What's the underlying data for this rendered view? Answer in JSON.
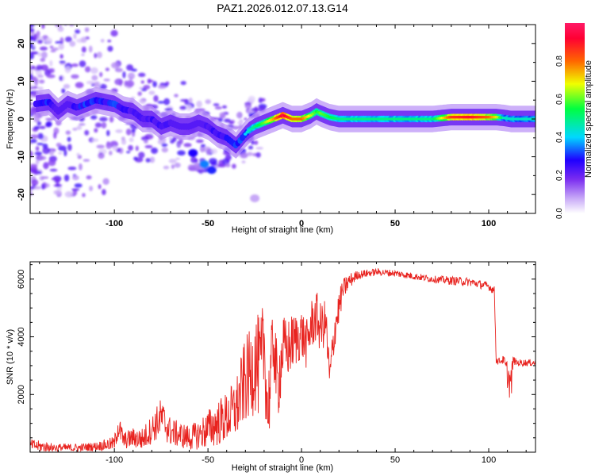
{
  "page_title": "PAZ1.2026.012.07.13.G14",
  "chart_data": [
    {
      "type": "heatmap",
      "title": "PAZ1.2026.012.07.13.G14",
      "xlabel": "Height of straight line (km)",
      "ylabel": "Frequency (Hz)",
      "xlim": [
        -145,
        125
      ],
      "ylim": [
        -25,
        25
      ],
      "xticks": [
        -100,
        -50,
        0,
        50,
        100
      ],
      "yticks": [
        -20,
        -10,
        0,
        10,
        20
      ],
      "ridge": {
        "x": [
          -142,
          -135,
          -130,
          -125,
          -120,
          -115,
          -110,
          -105,
          -100,
          -95,
          -90,
          -85,
          -80,
          -75,
          -70,
          -65,
          -60,
          -55,
          -50,
          -45,
          -40,
          -35,
          -30,
          -28,
          -25,
          -20,
          -15,
          -10,
          -5,
          0,
          5,
          8,
          10,
          15,
          20,
          30,
          50,
          70,
          80,
          90,
          100,
          104,
          108,
          112,
          116,
          125
        ],
        "freq": [
          4,
          4.5,
          2,
          4,
          3,
          4,
          5,
          4.5,
          4,
          2.5,
          2,
          0,
          0,
          -2,
          -1,
          -2,
          -2,
          -1,
          -2,
          -4,
          -5,
          -7,
          -4,
          -3,
          -2,
          -1,
          0,
          1,
          0,
          0,
          1,
          2,
          1.5,
          0.5,
          0,
          0,
          0,
          0,
          0.5,
          0.5,
          0.5,
          0.5,
          0.3,
          0,
          0,
          0
        ],
        "amplitude": [
          0.3,
          0.35,
          0.2,
          0.25,
          0.3,
          0.35,
          0.35,
          0.3,
          0.35,
          0.3,
          0.25,
          0.25,
          0.3,
          0.25,
          0.25,
          0.2,
          0.2,
          0.2,
          0.25,
          0.3,
          0.3,
          0.35,
          0.35,
          0.4,
          0.45,
          0.55,
          0.7,
          0.9,
          0.75,
          0.75,
          0.6,
          0.5,
          0.55,
          0.5,
          0.45,
          0.45,
          0.45,
          0.45,
          0.8,
          0.85,
          0.75,
          0.65,
          0.4,
          0.4,
          0.4,
          0.4
        ]
      },
      "colorbar": {
        "label": "Normalized spectral amplitude",
        "ticks": [
          "0.0",
          "0.2",
          "0.4",
          "0.6",
          "0.8"
        ],
        "range": [
          0,
          1
        ],
        "colors": [
          "#ffffff",
          "#c7a8f7",
          "#7a2cf0",
          "#1f00ff",
          "#00d8ff",
          "#00ff40",
          "#f0ff00",
          "#ff6600",
          "#ff0033",
          "#ff1a66"
        ]
      }
    },
    {
      "type": "line",
      "xlabel": "Height of straight line (km)",
      "ylabel": "SNR (10 * v/v)",
      "xlim": [
        -145,
        125
      ],
      "ylim": [
        0,
        6600
      ],
      "xticks": [
        -100,
        -50,
        0,
        50,
        100
      ],
      "yticks": [
        2000,
        4000,
        6000
      ],
      "series": [
        {
          "name": "SNR",
          "color": "#e8231f",
          "x": [
            -145,
            -140,
            -130,
            -120,
            -110,
            -100,
            -98,
            -95,
            -90,
            -85,
            -80,
            -75,
            -70,
            -65,
            -60,
            -55,
            -50,
            -45,
            -40,
            -35,
            -30,
            -27,
            -25,
            -22,
            -20,
            -18,
            -15,
            -13,
            -10,
            -8,
            -5,
            0,
            3,
            5,
            8,
            10,
            13,
            15,
            18,
            20,
            22,
            25,
            30,
            40,
            50,
            60,
            70,
            80,
            90,
            100,
            103,
            104,
            105,
            108,
            110,
            112,
            113,
            115,
            125
          ],
          "values": [
            250,
            200,
            150,
            150,
            200,
            300,
            900,
            400,
            500,
            450,
            800,
            1200,
            700,
            600,
            500,
            600,
            800,
            1000,
            1200,
            1500,
            2500,
            2700,
            3200,
            2800,
            3800,
            1300,
            4000,
            2200,
            3600,
            3500,
            3800,
            4100,
            3700,
            4400,
            4700,
            4300,
            4500,
            2500,
            4400,
            5000,
            5600,
            5900,
            6150,
            6250,
            6200,
            6100,
            6000,
            5950,
            5900,
            5750,
            5600,
            3200,
            3150,
            3200,
            2700,
            2300,
            3200,
            3100,
            3100
          ],
          "jitter": [
            200,
            200,
            150,
            150,
            150,
            250,
            500,
            300,
            350,
            400,
            500,
            700,
            500,
            450,
            450,
            500,
            700,
            800,
            900,
            1100,
            1500,
            1600,
            1800,
            1800,
            1700,
            1500,
            1300,
            1400,
            1200,
            1100,
            1000,
            900,
            900,
            900,
            900,
            900,
            800,
            800,
            700,
            600,
            400,
            300,
            150,
            120,
            120,
            120,
            120,
            150,
            150,
            150,
            150,
            120,
            120,
            150,
            500,
            700,
            150,
            120,
            120
          ]
        }
      ]
    }
  ]
}
